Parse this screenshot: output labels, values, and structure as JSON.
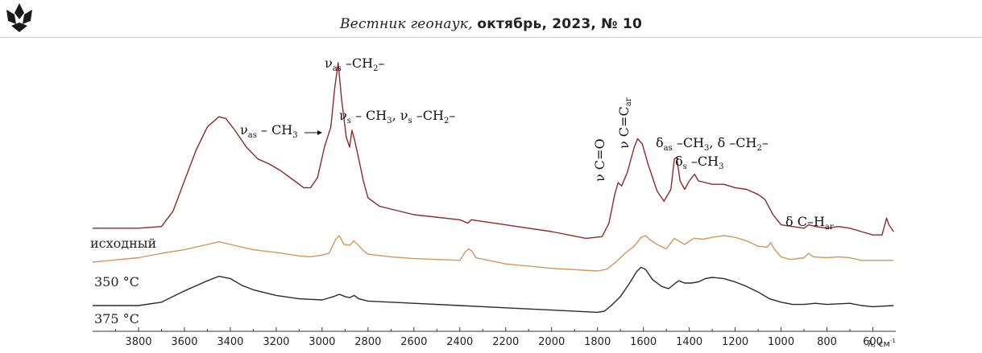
{
  "header": {
    "journal_name": "Вестник геонаук,",
    "issue": "октябрь, 2023, № 10"
  },
  "chart_data": {
    "type": "line",
    "xlabel": "λ, см-1",
    "x_ticks": [
      3800,
      3600,
      3400,
      3200,
      3000,
      2800,
      2600,
      2400,
      2200,
      2000,
      1800,
      1600,
      1400,
      1200,
      1000,
      800,
      600
    ],
    "xlim": [
      4000,
      500
    ],
    "x_reversed": true,
    "y_axis_shown": false,
    "series": [
      {
        "name": "исходный",
        "color": "#8b2a2a",
        "points": [
          [
            4000,
            0.02
          ],
          [
            3800,
            0.02
          ],
          [
            3700,
            0.03
          ],
          [
            3650,
            0.12
          ],
          [
            3600,
            0.3
          ],
          [
            3550,
            0.48
          ],
          [
            3500,
            0.62
          ],
          [
            3450,
            0.68
          ],
          [
            3420,
            0.67
          ],
          [
            3380,
            0.6
          ],
          [
            3330,
            0.5
          ],
          [
            3280,
            0.43
          ],
          [
            3230,
            0.4
          ],
          [
            3180,
            0.36
          ],
          [
            3120,
            0.3
          ],
          [
            3080,
            0.26
          ],
          [
            3050,
            0.26
          ],
          [
            3020,
            0.32
          ],
          [
            2990,
            0.5
          ],
          [
            2962,
            0.62
          ],
          [
            2945,
            0.85
          ],
          [
            2930,
            1.0
          ],
          [
            2915,
            0.78
          ],
          [
            2895,
            0.56
          ],
          [
            2880,
            0.5
          ],
          [
            2870,
            0.6
          ],
          [
            2858,
            0.54
          ],
          [
            2845,
            0.46
          ],
          [
            2820,
            0.3
          ],
          [
            2800,
            0.2
          ],
          [
            2750,
            0.15
          ],
          [
            2600,
            0.1
          ],
          [
            2400,
            0.07
          ],
          [
            2365,
            0.05
          ],
          [
            2350,
            0.07
          ],
          [
            2200,
            0.04
          ],
          [
            2000,
            0.0
          ],
          [
            1850,
            -0.04
          ],
          [
            1780,
            -0.03
          ],
          [
            1750,
            0.05
          ],
          [
            1725,
            0.22
          ],
          [
            1710,
            0.29
          ],
          [
            1695,
            0.27
          ],
          [
            1670,
            0.35
          ],
          [
            1640,
            0.5
          ],
          [
            1625,
            0.55
          ],
          [
            1605,
            0.52
          ],
          [
            1580,
            0.4
          ],
          [
            1540,
            0.24
          ],
          [
            1510,
            0.18
          ],
          [
            1480,
            0.25
          ],
          [
            1465,
            0.43
          ],
          [
            1455,
            0.44
          ],
          [
            1440,
            0.3
          ],
          [
            1420,
            0.25
          ],
          [
            1400,
            0.3
          ],
          [
            1377,
            0.34
          ],
          [
            1360,
            0.3
          ],
          [
            1300,
            0.28
          ],
          [
            1250,
            0.28
          ],
          [
            1200,
            0.26
          ],
          [
            1150,
            0.25
          ],
          [
            1100,
            0.22
          ],
          [
            1070,
            0.19
          ],
          [
            1035,
            0.1
          ],
          [
            1000,
            0.04
          ],
          [
            950,
            0.03
          ],
          [
            900,
            0.02
          ],
          [
            880,
            0.04
          ],
          [
            850,
            0.03
          ],
          [
            800,
            0.02
          ],
          [
            750,
            0.03
          ],
          [
            700,
            0.02
          ],
          [
            650,
            0.0
          ],
          [
            600,
            -0.02
          ],
          [
            560,
            -0.02
          ],
          [
            540,
            0.08
          ],
          [
            530,
            0.04
          ],
          [
            510,
            0.0
          ]
        ]
      },
      {
        "name": "350 °C",
        "color": "#d4955a",
        "points": [
          [
            4000,
            0.0
          ],
          [
            3800,
            0.05
          ],
          [
            3700,
            0.1
          ],
          [
            3600,
            0.14
          ],
          [
            3500,
            0.2
          ],
          [
            3450,
            0.23
          ],
          [
            3400,
            0.2
          ],
          [
            3300,
            0.14
          ],
          [
            3200,
            0.11
          ],
          [
            3100,
            0.07
          ],
          [
            3050,
            0.06
          ],
          [
            3000,
            0.08
          ],
          [
            2970,
            0.1
          ],
          [
            2940,
            0.26
          ],
          [
            2925,
            0.3
          ],
          [
            2905,
            0.2
          ],
          [
            2880,
            0.19
          ],
          [
            2862,
            0.24
          ],
          [
            2845,
            0.2
          ],
          [
            2820,
            0.13
          ],
          [
            2800,
            0.09
          ],
          [
            2700,
            0.06
          ],
          [
            2600,
            0.04
          ],
          [
            2400,
            0.02
          ],
          [
            2375,
            0.12
          ],
          [
            2360,
            0.15
          ],
          [
            2345,
            0.12
          ],
          [
            2330,
            0.05
          ],
          [
            2200,
            -0.02
          ],
          [
            2000,
            -0.07
          ],
          [
            1800,
            -0.1
          ],
          [
            1760,
            -0.08
          ],
          [
            1720,
            0.0
          ],
          [
            1680,
            0.1
          ],
          [
            1640,
            0.18
          ],
          [
            1610,
            0.28
          ],
          [
            1590,
            0.3
          ],
          [
            1570,
            0.25
          ],
          [
            1540,
            0.2
          ],
          [
            1500,
            0.15
          ],
          [
            1465,
            0.27
          ],
          [
            1440,
            0.23
          ],
          [
            1420,
            0.2
          ],
          [
            1380,
            0.27
          ],
          [
            1340,
            0.26
          ],
          [
            1300,
            0.28
          ],
          [
            1250,
            0.3
          ],
          [
            1200,
            0.28
          ],
          [
            1150,
            0.24
          ],
          [
            1100,
            0.18
          ],
          [
            1060,
            0.17
          ],
          [
            1045,
            0.22
          ],
          [
            1030,
            0.15
          ],
          [
            1000,
            0.06
          ],
          [
            960,
            0.03
          ],
          [
            900,
            0.05
          ],
          [
            880,
            0.1
          ],
          [
            860,
            0.06
          ],
          [
            800,
            0.05
          ],
          [
            750,
            0.06
          ],
          [
            700,
            0.05
          ],
          [
            650,
            0.02
          ],
          [
            600,
            0.02
          ],
          [
            550,
            0.02
          ],
          [
            510,
            0.02
          ]
        ]
      },
      {
        "name": "375 °C",
        "color": "#2a2a2a",
        "points": [
          [
            4000,
            0.0
          ],
          [
            3800,
            0.0
          ],
          [
            3700,
            0.03
          ],
          [
            3600,
            0.13
          ],
          [
            3500,
            0.22
          ],
          [
            3450,
            0.26
          ],
          [
            3400,
            0.24
          ],
          [
            3350,
            0.18
          ],
          [
            3300,
            0.14
          ],
          [
            3200,
            0.09
          ],
          [
            3100,
            0.06
          ],
          [
            3000,
            0.05
          ],
          [
            2950,
            0.08
          ],
          [
            2925,
            0.1
          ],
          [
            2900,
            0.08
          ],
          [
            2880,
            0.07
          ],
          [
            2860,
            0.09
          ],
          [
            2840,
            0.06
          ],
          [
            2800,
            0.04
          ],
          [
            2700,
            0.03
          ],
          [
            2600,
            0.02
          ],
          [
            2400,
            0.0
          ],
          [
            2200,
            -0.02
          ],
          [
            2000,
            -0.04
          ],
          [
            1800,
            -0.06
          ],
          [
            1770,
            -0.05
          ],
          [
            1740,
            0.0
          ],
          [
            1700,
            0.08
          ],
          [
            1660,
            0.2
          ],
          [
            1630,
            0.3
          ],
          [
            1610,
            0.34
          ],
          [
            1590,
            0.32
          ],
          [
            1560,
            0.23
          ],
          [
            1520,
            0.17
          ],
          [
            1490,
            0.15
          ],
          [
            1460,
            0.2
          ],
          [
            1445,
            0.22
          ],
          [
            1420,
            0.2
          ],
          [
            1390,
            0.2
          ],
          [
            1360,
            0.21
          ],
          [
            1330,
            0.24
          ],
          [
            1300,
            0.25
          ],
          [
            1250,
            0.24
          ],
          [
            1200,
            0.21
          ],
          [
            1150,
            0.17
          ],
          [
            1100,
            0.12
          ],
          [
            1050,
            0.06
          ],
          [
            1000,
            0.03
          ],
          [
            950,
            0.01
          ],
          [
            900,
            0.01
          ],
          [
            850,
            0.02
          ],
          [
            800,
            0.01
          ],
          [
            700,
            0.02
          ],
          [
            650,
            0.0
          ],
          [
            600,
            -0.01
          ],
          [
            510,
            0.0
          ]
        ]
      }
    ],
    "annotations": [
      {
        "id": "vas-ch2",
        "text": "νas –CH2–",
        "x": 2930
      },
      {
        "id": "vas-ch3",
        "text": "νas – CH3",
        "x": 2962,
        "arrow": true
      },
      {
        "id": "vs-ch3-ch2",
        "text": "νs – CH3, νs –CH2–",
        "x": 2860
      },
      {
        "id": "v-co",
        "text": "ν C=O",
        "x": 1710,
        "vertical": true
      },
      {
        "id": "v-cc-ar",
        "text": "ν C=Car",
        "x": 1620,
        "vertical": true
      },
      {
        "id": "das-ch3-ch2",
        "text": "δas –CH3, δ –CH2–",
        "x": 1460
      },
      {
        "id": "ds-ch3",
        "text": "δs –CH3",
        "x": 1377
      },
      {
        "id": "d-ch-ar",
        "text": "δ C–Har",
        "x": 860
      }
    ]
  }
}
